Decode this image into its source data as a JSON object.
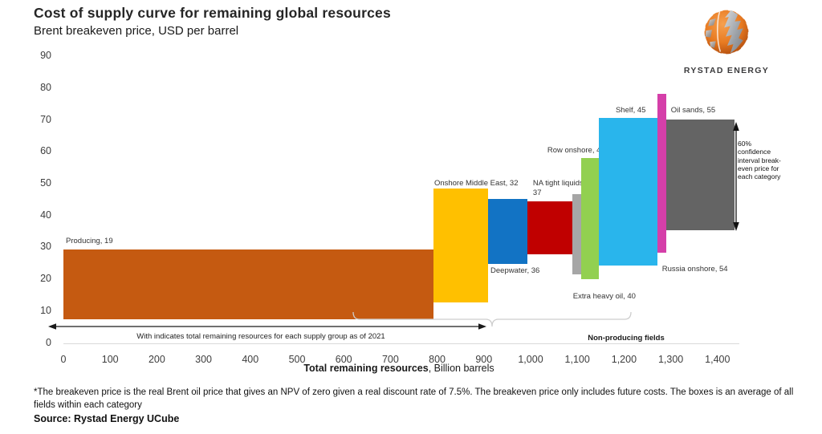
{
  "logo": {
    "text": "RYSTAD ENERGY"
  },
  "chart_data": {
    "type": "bar",
    "variant": "cost-of-supply-curve, variable-width floating boxes",
    "title": "Cost of supply curve for remaining global resources",
    "subtitle": "Brent breakeven price, USD per barrel",
    "xlabel_bold": "Total remaining resources",
    "xlabel_rest": ", Billion barrels",
    "xlim": [
      0,
      1450
    ],
    "ylim": [
      0,
      90
    ],
    "grid": false,
    "categories": [
      "Producing",
      "Onshore Middle East",
      "Deepwater",
      "NA tight liquids",
      "Extra heavy oil",
      "Row onshore",
      "Shelf",
      "Russia onshore",
      "Oil sands"
    ],
    "values": [
      19,
      32,
      36,
      37,
      40,
      42,
      45,
      54,
      55
    ],
    "y_ticks": [
      {
        "v": 0,
        "label": "0"
      },
      {
        "v": 10,
        "label": "10"
      },
      {
        "v": 20,
        "label": "20"
      },
      {
        "v": 30,
        "label": "30"
      },
      {
        "v": 40,
        "label": "40"
      },
      {
        "v": 50,
        "label": "50"
      },
      {
        "v": 60,
        "label": "60"
      },
      {
        "v": 70,
        "label": "70"
      },
      {
        "v": 80,
        "label": "80"
      },
      {
        "v": 90,
        "label": "90"
      }
    ],
    "x_ticks": [
      {
        "v": 0,
        "label": "0"
      },
      {
        "v": 100,
        "label": "100"
      },
      {
        "v": 200,
        "label": "200"
      },
      {
        "v": 300,
        "label": "300"
      },
      {
        "v": 400,
        "label": "400"
      },
      {
        "v": 500,
        "label": "500"
      },
      {
        "v": 600,
        "label": "600"
      },
      {
        "v": 700,
        "label": "700"
      },
      {
        "v": 800,
        "label": "800"
      },
      {
        "v": 900,
        "label": "900"
      },
      {
        "v": 1000,
        "label": "1,000"
      },
      {
        "v": 1100,
        "label": "1,100"
      },
      {
        "v": 1200,
        "label": "1,200"
      },
      {
        "v": 1300,
        "label": "1,300"
      },
      {
        "v": 1400,
        "label": "1,400"
      }
    ],
    "series": [
      {
        "name": "Producing",
        "avg_breakeven": 19,
        "label": "Producing, 19",
        "x_start": 0,
        "x_end": 792,
        "price_low": 7.4,
        "price_high": 29.4,
        "color": "#C55A11",
        "label_side": "above",
        "label_dx": 3,
        "label_dy": -16
      },
      {
        "name": "Onshore Middle East",
        "avg_breakeven": 32,
        "label": "Onshore Middle East, 32",
        "x_start": 792,
        "x_end": 909,
        "price_low": 12.7,
        "price_high": 48.5,
        "color": "#FFC000",
        "label_side": "above",
        "label_dx": 1,
        "label_dy": -12
      },
      {
        "name": "Deepwater",
        "avg_breakeven": 36,
        "label": "Deepwater, 36",
        "x_start": 909,
        "x_end": 993,
        "price_low": 24.8,
        "price_high": 45.3,
        "color": "#1273C4",
        "label_side": "below",
        "label_dx": 3,
        "label_dy": 3
      },
      {
        "name": "NA tight liquids",
        "avg_breakeven": 37,
        "label": "NA tight liquids,\n37",
        "x_start": 993,
        "x_end": 1089,
        "price_low": 27.9,
        "price_high": 44.5,
        "color": "#C00000",
        "label_side": "above",
        "label_dx": 7,
        "label_dy": -28
      },
      {
        "name": "Extra heavy oil",
        "avg_breakeven": 40,
        "label": "Extra heavy oil, 40",
        "x_start": 1089,
        "x_end": 1108,
        "price_low": 21.6,
        "price_high": 46.8,
        "color": "#A6A6A6",
        "label_side": "below",
        "label_dx": 1,
        "label_dy": 22
      },
      {
        "name": "Row onshore",
        "avg_breakeven": 42,
        "label": "Row onshore, 42",
        "x_start": 1108,
        "x_end": 1146,
        "price_low": 20.0,
        "price_high": 58.1,
        "color": "#92D050",
        "label_side": "above",
        "label_dx": -42,
        "label_dy": -15
      },
      {
        "name": "Shelf",
        "avg_breakeven": 45,
        "label": "Shelf, 45",
        "x_start": 1146,
        "x_end": 1271,
        "price_low": 24.3,
        "price_high": 70.7,
        "color": "#29B5EC",
        "label_side": "above",
        "label_dx": 21,
        "label_dy": -15
      },
      {
        "name": "Russia onshore",
        "avg_breakeven": 54,
        "label": "Russia onshore, 54",
        "x_start": 1271,
        "x_end": 1290,
        "price_low": 28.4,
        "price_high": 78.3,
        "color": "#D53FA9",
        "label_side": "below",
        "label_dx": 6,
        "label_dy": 15
      },
      {
        "name": "Oil sands",
        "avg_breakeven": 55,
        "label": "Oil sands, 55",
        "x_start": 1290,
        "x_end": 1436,
        "price_low": 35.4,
        "price_high": 70.2,
        "color": "#646464",
        "label_side": "above",
        "label_dx": 6,
        "label_dy": -17
      }
    ]
  },
  "annotations": {
    "width_note": "With indicates total remaining resources for each supply group as of 2021",
    "non_producing": "Non-producing fields",
    "ci_note": "60%\nconfidence\ninterval break-\neven price for\neach category"
  },
  "footer": {
    "footnote": "*The breakeven price is the real Brent oil price that gives an NPV of zero given a real discount rate of 7.5%. The breakeven price only includes future costs. The boxes is an average of all fields within each category",
    "source": "Source: Rystad Energy UCube"
  }
}
